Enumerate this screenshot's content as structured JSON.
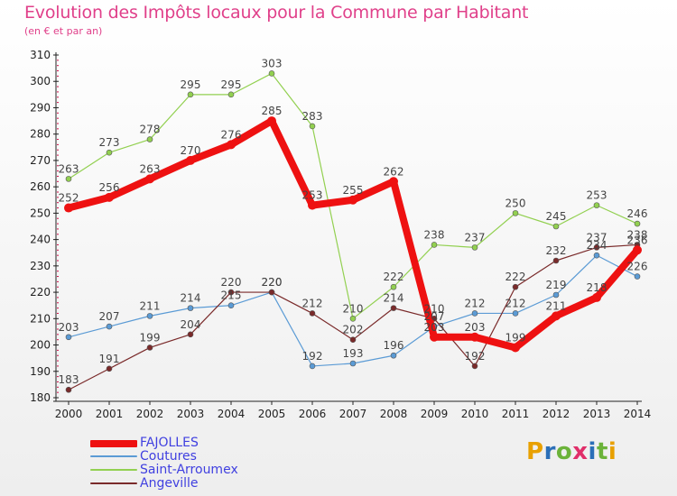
{
  "title": "Evolution des Impôts locaux pour la Commune par Habitant",
  "subtitle": "(en € et par an)",
  "logo": {
    "text": "Proxiti",
    "letters": [
      "P",
      "r",
      "o",
      "x",
      "i",
      "t",
      "i"
    ],
    "colors": [
      "#e8a000",
      "#2b6fb8",
      "#6bb33a",
      "#e02f6a",
      "#2b6fb8",
      "#6bb33a",
      "#e8a000"
    ]
  },
  "chart_data": {
    "type": "line",
    "title": "Evolution des Impôts locaux pour la Commune par Habitant",
    "subtitle": "(en € et par an)",
    "x": [
      "2000",
      "2001",
      "2002",
      "2003",
      "2004",
      "2005",
      "2006",
      "2007",
      "2008",
      "2009",
      "2010",
      "2011",
      "2012",
      "2013",
      "2014"
    ],
    "yticks": [
      180,
      190,
      200,
      210,
      220,
      230,
      240,
      250,
      260,
      270,
      280,
      290,
      300,
      310
    ],
    "ylim": [
      180,
      310
    ],
    "grid": false,
    "legend_position": "bottom-left",
    "series": [
      {
        "name": "FAJOLLES",
        "color": "#ee1111",
        "width": 8,
        "label_color": "#444444",
        "values": [
          252,
          256,
          263,
          270,
          276,
          285,
          253,
          255,
          262,
          203,
          203,
          199,
          211,
          218,
          236
        ]
      },
      {
        "name": "Coutures",
        "color": "#5b9bd5",
        "width": 1.2,
        "label_color": "#444444",
        "values": [
          203,
          207,
          211,
          214,
          215,
          220,
          192,
          193,
          196,
          207,
          212,
          212,
          219,
          234,
          226
        ]
      },
      {
        "name": "Saint-Arroumex",
        "color": "#92d050",
        "width": 1.2,
        "label_color": "#444444",
        "values": [
          263,
          273,
          278,
          295,
          295,
          303,
          283,
          210,
          222,
          238,
          237,
          250,
          245,
          253,
          246
        ]
      },
      {
        "name": "Angeville",
        "color": "#7a2a2a",
        "width": 1.2,
        "label_color": "#444444",
        "values": [
          183,
          191,
          199,
          204,
          220,
          220,
          212,
          202,
          214,
          210,
          192,
          222,
          232,
          237,
          238
        ]
      }
    ]
  },
  "legend": [
    {
      "label": "FAJOLLES",
      "color": "#ee1111"
    },
    {
      "label": "Coutures",
      "color": "#5b9bd5"
    },
    {
      "label": "Saint-Arroumex",
      "color": "#92d050"
    },
    {
      "label": "Angeville",
      "color": "#7a2a2a"
    }
  ]
}
